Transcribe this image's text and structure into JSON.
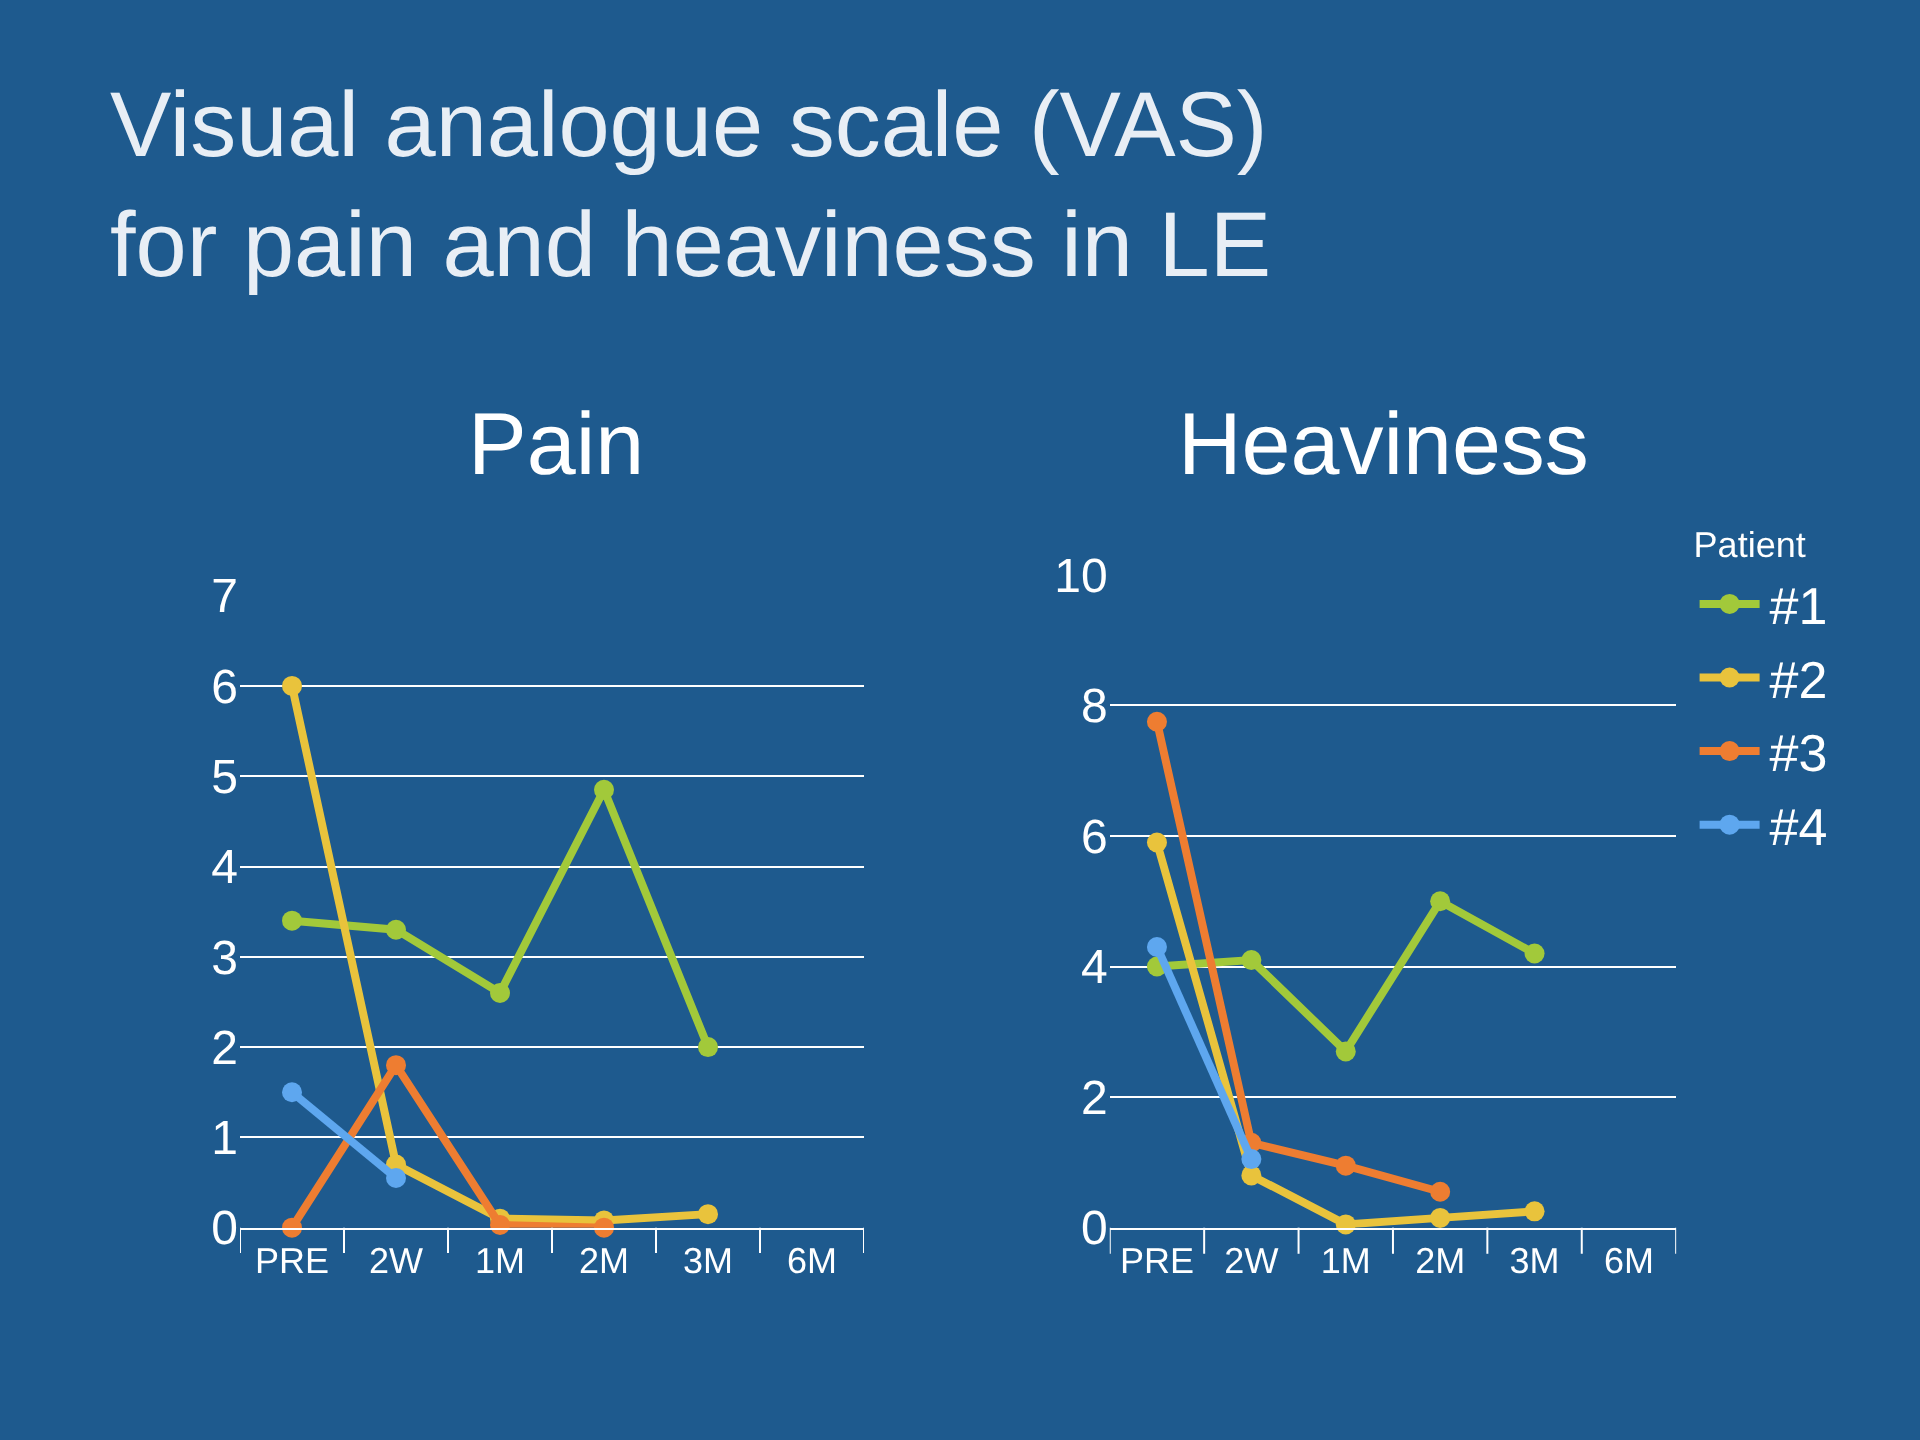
{
  "chart_data": [
    {
      "type": "line",
      "title": "Pain",
      "annotations": [
        "Visual analogue scale (VAS)\nfor pain and heaviness in LE"
      ],
      "categories": [
        "PRE",
        "2W",
        "1M",
        "2M",
        "3M",
        "6M"
      ],
      "ylim": [
        0,
        7
      ],
      "yticks": [
        0,
        1,
        2,
        3,
        4,
        5,
        6,
        7
      ],
      "grid": "y",
      "legend": false,
      "marker": "circle",
      "line_style": "solid",
      "series": [
        {
          "color": "#a2c93a",
          "values": [
            3.4,
            3.3,
            2.6,
            4.85,
            2.0,
            null
          ]
        },
        {
          "color": "#e9c33c",
          "values": [
            6.0,
            0.7,
            0.1,
            0.08,
            0.15,
            null
          ]
        },
        {
          "color": "#ee7d31",
          "values": [
            0.0,
            1.8,
            0.03,
            0.0,
            null,
            null
          ]
        },
        {
          "color": "#5ea7ef",
          "values": [
            1.5,
            0.55,
            null,
            null,
            null,
            null
          ]
        }
      ]
    },
    {
      "type": "line",
      "title": "Heaviness",
      "legend_title": "Patient",
      "categories": [
        "PRE",
        "2W",
        "1M",
        "2M",
        "3M",
        "6M"
      ],
      "ylim": [
        0,
        10
      ],
      "yticks": [
        0,
        2,
        4,
        6,
        8,
        10
      ],
      "grid": "y",
      "legend": "right",
      "marker": "circle",
      "line_style": "solid",
      "series": [
        {
          "name": "#1",
          "color": "#a2c93a",
          "values": [
            4.0,
            4.1,
            2.7,
            5.0,
            4.2,
            null
          ]
        },
        {
          "name": "#2",
          "color": "#e9c33c",
          "values": [
            5.9,
            0.8,
            0.05,
            0.15,
            0.25,
            null
          ]
        },
        {
          "name": "#3",
          "color": "#ee7d31",
          "values": [
            7.75,
            1.3,
            0.95,
            0.55,
            null,
            null
          ]
        },
        {
          "name": "#4",
          "color": "#5ea7ef",
          "values": [
            4.3,
            1.05,
            null,
            null,
            null,
            null
          ]
        }
      ]
    }
  ]
}
